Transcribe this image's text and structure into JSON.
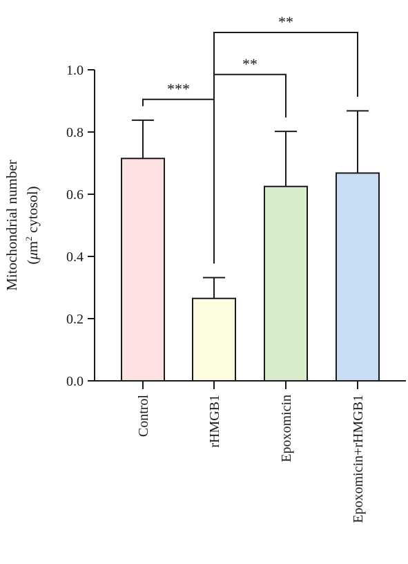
{
  "chart_data": {
    "type": "bar",
    "categories": [
      "Control",
      "rHMGB1",
      "Epoxomicin",
      "Epoxomicin+rHMGB1"
    ],
    "values": [
      0.715,
      0.265,
      0.625,
      0.668
    ],
    "error_upper": [
      0.838,
      0.332,
      0.802,
      0.868
    ],
    "bar_colors": [
      "#fde0e2",
      "#fdfbe0",
      "#d6ecca",
      "#c8ddf3"
    ],
    "ylabel_line1": "Mitochondrial number",
    "ylabel_line2_pre": "(",
    "ylabel_line2_mu": "μ",
    "ylabel_line2_m": "m",
    "ylabel_line2_sup": "2",
    "ylabel_line2_post": " cytosol)",
    "ylim": [
      0,
      1.0
    ],
    "yticks": [
      0.0,
      0.2,
      0.4,
      0.6,
      0.8,
      1.0
    ],
    "ytick_labels": [
      "0.0",
      "0.2",
      "0.4",
      "0.6",
      "0.8",
      "1.0"
    ],
    "grid": false,
    "significance": [
      {
        "from": 0,
        "to": 1,
        "label": "***",
        "level": 0.905
      },
      {
        "from": 1,
        "to": 2,
        "label": "**",
        "level": 0.985
      },
      {
        "from": 1,
        "to": 3,
        "label": "**",
        "level": 1.12
      }
    ]
  }
}
